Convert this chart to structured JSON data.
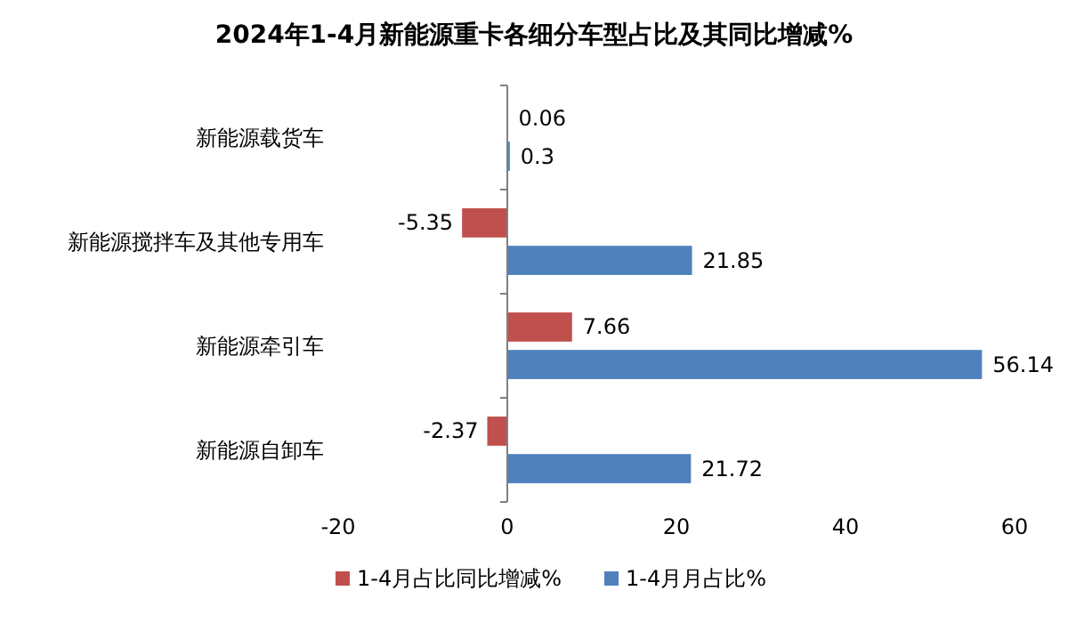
{
  "chart_data": {
    "type": "bar",
    "orientation": "horizontal",
    "title": "2024年1-4月新能源重卡各细分车型占比及其同比增减%",
    "categories": [
      "新能源载货车",
      "新能源搅拌车及其他专用车",
      "新能源牵引车",
      "新能源自卸车"
    ],
    "series": [
      {
        "name": "1-4月占比同比增减%",
        "color": "#c0504d",
        "values": [
          0.06,
          -5.35,
          7.66,
          -2.37
        ]
      },
      {
        "name": "1-4月月占比%",
        "color": "#4f81bd",
        "values": [
          0.3,
          21.85,
          56.14,
          21.72
        ]
      }
    ],
    "xlim": [
      -20,
      60
    ],
    "xticks": [
      -20,
      0,
      20,
      40,
      60
    ],
    "data_labels": true,
    "legend": "bottom"
  }
}
